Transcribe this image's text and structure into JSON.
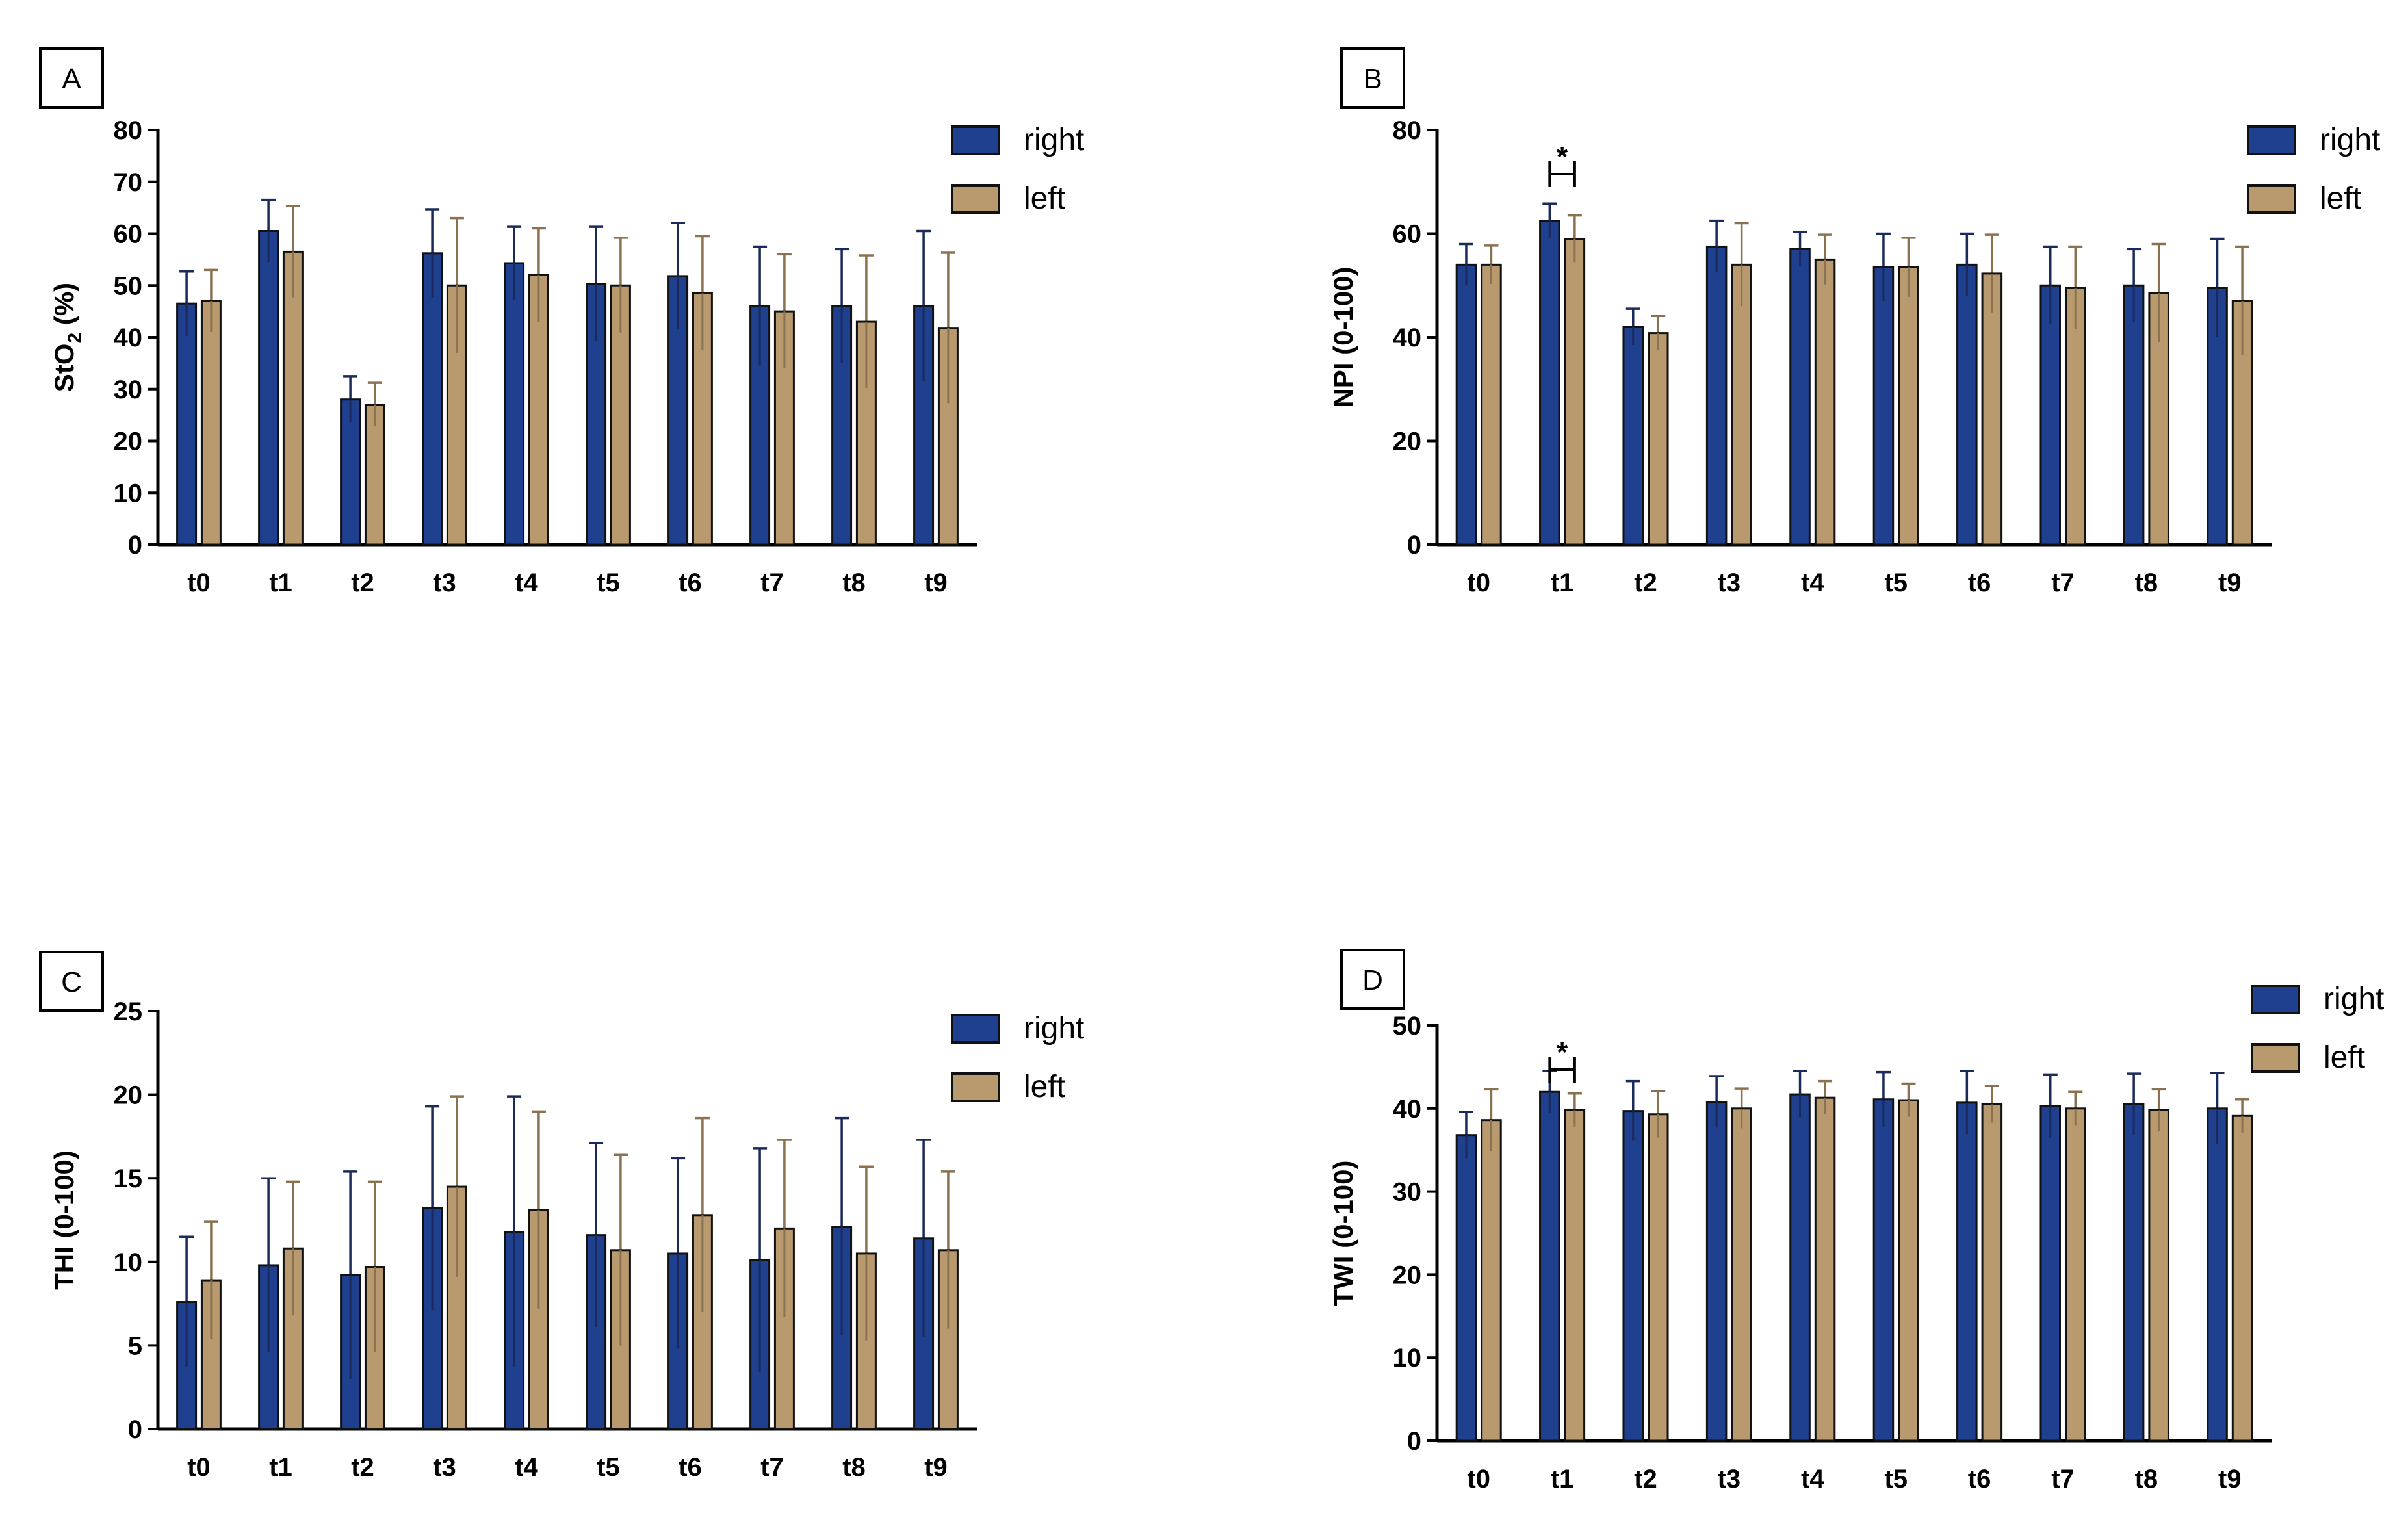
{
  "colors": {
    "right": "#1f3f8f",
    "left": "#b89a6e",
    "axis": "#000000",
    "error_right": "#1a2a5a",
    "error_left": "#8a7250"
  },
  "chart_data": [
    {
      "panel": "A",
      "type": "bar",
      "ylabel": "StO",
      "ylabel_sub": "2",
      "ylabel_suffix": " (%)",
      "ylim": [
        0,
        80
      ],
      "yticks": [
        0,
        10,
        20,
        30,
        40,
        50,
        60,
        70,
        80
      ],
      "categories": [
        "t0",
        "t1",
        "t2",
        "t3",
        "t4",
        "t5",
        "t6",
        "t7",
        "t8",
        "t9"
      ],
      "series": [
        {
          "name": "right",
          "values": [
            46.5,
            60.5,
            28,
            56.2,
            54.3,
            50.3,
            51.8,
            46,
            46,
            46
          ],
          "errors": [
            6.2,
            6,
            4.5,
            8.5,
            7,
            11,
            10.3,
            11.5,
            11,
            14.5
          ]
        },
        {
          "name": "left",
          "values": [
            47,
            56.5,
            27,
            50,
            52,
            50,
            48.5,
            45,
            43,
            41.8
          ],
          "errors": [
            6,
            8.8,
            4.2,
            13,
            9,
            9.2,
            11,
            11,
            12.8,
            14.5
          ]
        }
      ],
      "significance": []
    },
    {
      "panel": "B",
      "type": "bar",
      "ylabel": "NPI  (0-100)",
      "ylabel_sub": "",
      "ylabel_suffix": "",
      "ylim": [
        0,
        80
      ],
      "yticks": [
        0,
        20,
        40,
        60,
        80
      ],
      "categories": [
        "t0",
        "t1",
        "t2",
        "t3",
        "t4",
        "t5",
        "t6",
        "t7",
        "t8",
        "t9"
      ],
      "series": [
        {
          "name": "right",
          "values": [
            54,
            62.5,
            42,
            57.5,
            57,
            53.5,
            54,
            50,
            50,
            49.5
          ],
          "errors": [
            4,
            3.3,
            3.5,
            5,
            3.3,
            6.5,
            6,
            7.5,
            7,
            9.5
          ]
        },
        {
          "name": "left",
          "values": [
            54,
            59,
            40.8,
            54,
            55,
            53.5,
            52.3,
            49.5,
            48.5,
            47
          ],
          "errors": [
            3.7,
            4.5,
            3.3,
            8,
            4.8,
            5.7,
            7.5,
            8,
            9.5,
            10.5
          ]
        }
      ],
      "significance": [
        {
          "category": "t1",
          "label": "*"
        }
      ]
    },
    {
      "panel": "C",
      "type": "bar",
      "ylabel": "THI (0-100)",
      "ylabel_sub": "",
      "ylabel_suffix": "",
      "ylim": [
        0,
        25
      ],
      "yticks": [
        0,
        5,
        10,
        15,
        20,
        25
      ],
      "categories": [
        "t0",
        "t1",
        "t2",
        "t3",
        "t4",
        "t5",
        "t6",
        "t7",
        "t8",
        "t9"
      ],
      "series": [
        {
          "name": "right",
          "values": [
            7.6,
            9.8,
            9.2,
            13.2,
            11.8,
            11.6,
            10.5,
            10.1,
            12.1,
            11.4
          ],
          "errors": [
            3.9,
            5.2,
            6.2,
            6.1,
            8.1,
            5.5,
            5.7,
            6.7,
            6.5,
            5.9
          ]
        },
        {
          "name": "left",
          "values": [
            8.9,
            10.8,
            9.7,
            14.5,
            13.1,
            10.7,
            12.8,
            12,
            10.5,
            10.7
          ],
          "errors": [
            3.5,
            4,
            5.1,
            5.4,
            5.9,
            5.7,
            5.8,
            5.3,
            5.2,
            4.7
          ]
        }
      ],
      "significance": []
    },
    {
      "panel": "D",
      "type": "bar",
      "ylabel": "TWI (0-100)",
      "ylabel_sub": "",
      "ylabel_suffix": "",
      "ylim": [
        0,
        50
      ],
      "yticks": [
        0,
        10,
        20,
        30,
        40,
        50
      ],
      "categories": [
        "t0",
        "t1",
        "t2",
        "t3",
        "t4",
        "t5",
        "t6",
        "t7",
        "t8",
        "t9"
      ],
      "series": [
        {
          "name": "right",
          "values": [
            36.8,
            42,
            39.7,
            40.8,
            41.7,
            41.1,
            40.7,
            40.3,
            40.5,
            40
          ],
          "errors": [
            2.8,
            2.5,
            3.6,
            3.1,
            2.8,
            3.3,
            3.8,
            3.8,
            3.7,
            4.3
          ]
        },
        {
          "name": "left",
          "values": [
            38.6,
            39.8,
            39.3,
            40,
            41.3,
            41,
            40.5,
            40,
            39.8,
            39.1
          ],
          "errors": [
            3.7,
            2,
            2.8,
            2.4,
            2,
            2,
            2.2,
            2,
            2.5,
            2
          ]
        }
      ],
      "significance": [
        {
          "category": "t1",
          "label": "*"
        }
      ]
    }
  ]
}
